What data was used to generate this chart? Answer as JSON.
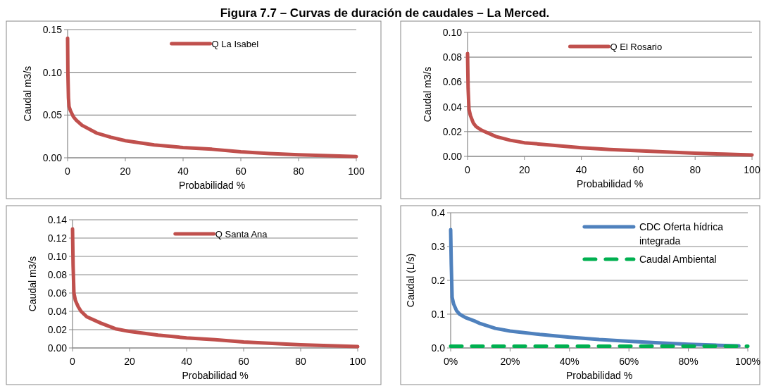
{
  "chart_data": [
    {
      "type": "line",
      "title": "Figura 7.7 – Curvas de duración de caudales – La Merced.",
      "xlabel": "Probabilidad %",
      "ylabel": "Caudal m3/s",
      "xlim": [
        0,
        100
      ],
      "xticks": [
        0,
        20,
        40,
        60,
        80,
        100
      ],
      "ylim": [
        0,
        0.15
      ],
      "yticks": [
        {
          "value": 0,
          "label": "0.00"
        },
        {
          "value": 0.05,
          "label": "0.05"
        },
        {
          "value": 0.1,
          "label": "0.10"
        },
        {
          "value": 0.15,
          "label": "0.15"
        }
      ],
      "grid": "y",
      "legend": "top",
      "marker": "none",
      "series": [
        {
          "name": "Q La Isabel",
          "color": "#c0504d",
          "x": [
            0,
            0.1,
            0.3,
            0.5,
            1,
            2,
            3,
            5,
            10,
            15,
            20,
            30,
            40,
            50,
            60,
            70,
            80,
            90,
            100
          ],
          "values": [
            0.14,
            0.1,
            0.07,
            0.06,
            0.055,
            0.048,
            0.044,
            0.038,
            0.029,
            0.024,
            0.02,
            0.015,
            0.012,
            0.01,
            0.007,
            0.005,
            0.0035,
            0.0025,
            0.0015
          ]
        }
      ]
    },
    {
      "type": "line",
      "xlabel": "Probabilidad %",
      "ylabel": "Caudal m3/s",
      "xlim": [
        0,
        100
      ],
      "xticks": [
        0,
        20,
        40,
        60,
        80,
        100
      ],
      "ylim": [
        0,
        0.1
      ],
      "yticks": [
        {
          "value": 0,
          "label": "0.00"
        },
        {
          "value": 0.02,
          "label": "0.02"
        },
        {
          "value": 0.04,
          "label": "0.04"
        },
        {
          "value": 0.06,
          "label": "0.06"
        },
        {
          "value": 0.08,
          "label": "0.08"
        },
        {
          "value": 0.1,
          "label": "0.10"
        }
      ],
      "grid": "y",
      "legend": "top",
      "marker": "none",
      "series": [
        {
          "name": "Q El Rosario",
          "color": "#c0504d",
          "x": [
            0,
            0.2,
            0.5,
            1,
            2,
            3,
            5,
            10,
            15,
            20,
            30,
            40,
            50,
            60,
            70,
            80,
            90,
            100
          ],
          "values": [
            0.083,
            0.055,
            0.038,
            0.033,
            0.027,
            0.024,
            0.021,
            0.016,
            0.013,
            0.011,
            0.009,
            0.007,
            0.0055,
            0.0045,
            0.0035,
            0.0025,
            0.0018,
            0.0012
          ]
        }
      ]
    },
    {
      "type": "line",
      "xlabel": "Probabilidad %",
      "ylabel": "Caudal m3/s",
      "xlim": [
        0,
        100
      ],
      "xticks": [
        0,
        20,
        40,
        60,
        80,
        100
      ],
      "ylim": [
        0,
        0.14
      ],
      "yticks": [
        {
          "value": 0,
          "label": "0.00"
        },
        {
          "value": 0.02,
          "label": "0.02"
        },
        {
          "value": 0.04,
          "label": "0.04"
        },
        {
          "value": 0.06,
          "label": "0.06"
        },
        {
          "value": 0.08,
          "label": "0.08"
        },
        {
          "value": 0.1,
          "label": "0.10"
        },
        {
          "value": 0.12,
          "label": "0.12"
        },
        {
          "value": 0.14,
          "label": "0.14"
        }
      ],
      "grid": "y",
      "legend": "top",
      "marker": "none",
      "series": [
        {
          "name": "Q Santa Ana",
          "color": "#c0504d",
          "x": [
            0,
            0.2,
            0.5,
            1,
            2,
            3,
            5,
            10,
            15,
            20,
            30,
            40,
            50,
            60,
            70,
            80,
            90,
            100
          ],
          "values": [
            0.13,
            0.09,
            0.06,
            0.052,
            0.045,
            0.04,
            0.034,
            0.027,
            0.021,
            0.018,
            0.014,
            0.011,
            0.009,
            0.0065,
            0.005,
            0.0035,
            0.0025,
            0.0015
          ]
        }
      ]
    },
    {
      "type": "line",
      "xlabel": "Probabilidad %",
      "ylabel": "Caudal (L/s)",
      "xlim": [
        0,
        100
      ],
      "xticks": [
        {
          "value": 0,
          "label": "0%"
        },
        {
          "value": 20,
          "label": "20%"
        },
        {
          "value": 40,
          "label": "40%"
        },
        {
          "value": 60,
          "label": "60%"
        },
        {
          "value": 80,
          "label": "80%"
        },
        {
          "value": 100,
          "label": "100%"
        }
      ],
      "ylim": [
        0,
        0.4
      ],
      "yticks": [
        {
          "value": 0,
          "label": "0.0"
        },
        {
          "value": 0.1,
          "label": "0.1"
        },
        {
          "value": 0.2,
          "label": "0.2"
        },
        {
          "value": 0.3,
          "label": "0.3"
        },
        {
          "value": 0.4,
          "label": "0.4"
        }
      ],
      "grid": "y",
      "legend": "top right",
      "marker": "none",
      "series": [
        {
          "name": "CDC Oferta hídrica integrada",
          "color": "#4f81bd",
          "x": [
            0,
            0.2,
            0.5,
            1,
            2,
            3,
            5,
            8,
            10,
            15,
            20,
            30,
            40,
            50,
            60,
            70,
            80,
            90,
            97
          ],
          "values": [
            0.35,
            0.25,
            0.15,
            0.13,
            0.11,
            0.1,
            0.09,
            0.08,
            0.072,
            0.058,
            0.05,
            0.04,
            0.032,
            0.025,
            0.02,
            0.015,
            0.011,
            0.008,
            0.006
          ]
        },
        {
          "name": "Caudal Ambiental",
          "color": "#00b050",
          "line_style": "dashed",
          "x": [
            0,
            100
          ],
          "values": [
            0.005,
            0.005
          ]
        }
      ]
    }
  ]
}
